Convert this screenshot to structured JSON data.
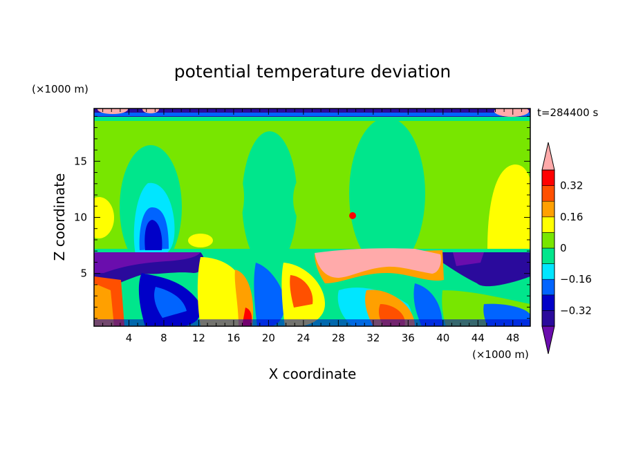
{
  "chart_data": {
    "type": "heatmap",
    "title": "potential temperature deviation",
    "xlabel": "X coordinate",
    "ylabel": "Z coordinate",
    "x_unit": "(×1000 m)",
    "y_unit": "(×1000 m)",
    "time_label": "t=284400 s",
    "xlim": [
      0,
      50
    ],
    "ylim": [
      0.3,
      19.7
    ],
    "x_ticks": [
      4,
      8,
      12,
      16,
      20,
      24,
      28,
      32,
      36,
      40,
      44,
      48
    ],
    "y_ticks": [
      5,
      10,
      15
    ],
    "colorbar": {
      "levels": [
        -0.4,
        -0.32,
        -0.24,
        -0.16,
        -0.08,
        0,
        0.08,
        0.16,
        0.24,
        0.32,
        0.4
      ],
      "tick_labels": [
        "0.32",
        "0.16",
        "0",
        "−0.16",
        "−0.32"
      ],
      "tick_values": [
        0.32,
        0.16,
        0,
        -0.16,
        -0.32
      ],
      "colors": [
        "#6a0dad",
        "#2a0a9c",
        "#0000c8",
        "#0064ff",
        "#00e6ff",
        "#00e68c",
        "#78e600",
        "#ffff00",
        "#ffa000",
        "#ff5000",
        "#ff0000",
        "#ffaaaa"
      ]
    },
    "features": [
      {
        "x": 6.2,
        "z": 6.1,
        "value": -0.44
      },
      {
        "x": 1.0,
        "z": 6.4,
        "value": -0.44
      },
      {
        "x": 27.5,
        "z": 5.9,
        "value": 0.44
      },
      {
        "x": 34.0,
        "z": 6.1,
        "value": 0.44
      },
      {
        "x": 39.2,
        "z": 5.6,
        "value": 0.41
      },
      {
        "x": 5.5,
        "z": 11.2,
        "value": -0.1
      },
      {
        "x": 6.4,
        "z": 9.3,
        "value": -0.3
      },
      {
        "x": 48.5,
        "z": 11.0,
        "value": 0.15
      },
      {
        "x": 1.0,
        "z": 10.0,
        "value": 0.15
      },
      {
        "x": 15.0,
        "z": 12.0,
        "value": 0.05
      },
      {
        "x": 24.5,
        "z": 12.0,
        "value": 0.05
      },
      {
        "x": 40.0,
        "z": 13.5,
        "value": 0.05
      },
      {
        "x": 29.7,
        "z": 10.1,
        "value": 0.3
      },
      {
        "x": 2.0,
        "z": 3.0,
        "value": 0.3
      },
      {
        "x": 18.0,
        "z": 2.0,
        "value": 0.35
      },
      {
        "x": 34.0,
        "z": 2.0,
        "value": 0.35
      },
      {
        "x": 9.0,
        "z": 3.0,
        "value": -0.33
      },
      {
        "x": 5.5,
        "z": 1.2,
        "value": -0.25
      },
      {
        "x": 44.0,
        "z": 2.0,
        "value": 0.0
      },
      {
        "x": 16.0,
        "z": 3.5,
        "value": 0.2
      }
    ]
  }
}
